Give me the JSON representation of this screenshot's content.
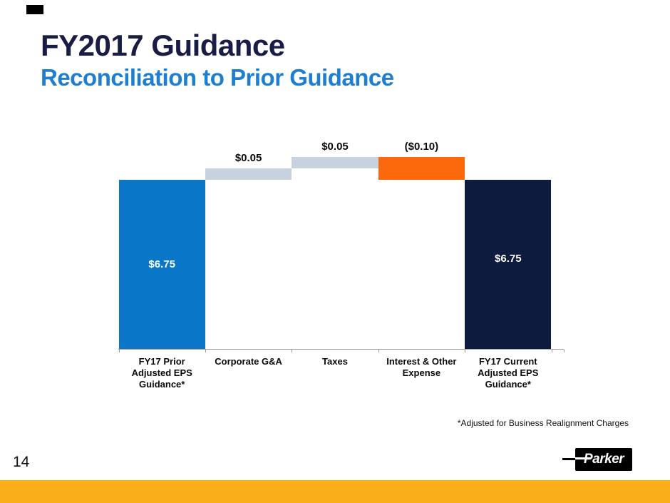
{
  "slide": {
    "title": "FY2017 Guidance",
    "subtitle": "Reconciliation to Prior Guidance",
    "footnote": "*Adjusted for Business Realignment Charges",
    "page_number": "14"
  },
  "logo": {
    "text": "Parker"
  },
  "colors": {
    "title_text": "#191C45",
    "subtitle_text": "#1E7FD2",
    "bar_total_start": "#0A76C8",
    "bar_delta_positive": "#C7D1DF",
    "bar_delta_negative": "#FC690D",
    "bar_total_end": "#0D1B3F",
    "value_label_inside": "#FFFFFF",
    "value_label_outside": "#0A0A0A",
    "axis_line": "#999999",
    "bottom_band": "#FAAF18",
    "top_mark": "#000000"
  },
  "chart_data": {
    "type": "bar",
    "subtype": "waterfall",
    "title": "",
    "xlabel": "",
    "ylabel": "",
    "grid": false,
    "legend": false,
    "value_axis_truncated": true,
    "start_value": 6.75,
    "peak_value": 6.85,
    "end_value": 6.75,
    "categories": [
      "FY17 Prior\nAdjusted EPS\nGuidance*",
      "Corporate G&A",
      "Taxes",
      "Interest & Other\nExpense",
      "FY17 Current\nAdjusted EPS\nGuidance*"
    ],
    "bars": [
      {
        "kind": "total",
        "value": 6.75,
        "label": "$6.75",
        "label_position": "inside",
        "color_key": "bar_total_start",
        "label_offset_y": 0
      },
      {
        "kind": "delta",
        "value": 0.05,
        "label": "$0.05",
        "label_position": "above",
        "color_key": "bar_delta_positive",
        "label_offset_y": 0
      },
      {
        "kind": "delta",
        "value": 0.05,
        "label": "$0.05",
        "label_position": "above",
        "color_key": "bar_delta_positive",
        "label_offset_y": 0
      },
      {
        "kind": "delta",
        "value": -0.1,
        "label": "($0.10)",
        "label_position": "above",
        "color_key": "bar_delta_negative",
        "label_offset_y": 0
      },
      {
        "kind": "total",
        "value": 6.75,
        "label": "$6.75",
        "label_position": "inside",
        "color_key": "bar_total_end",
        "label_offset_y": -8
      }
    ]
  }
}
